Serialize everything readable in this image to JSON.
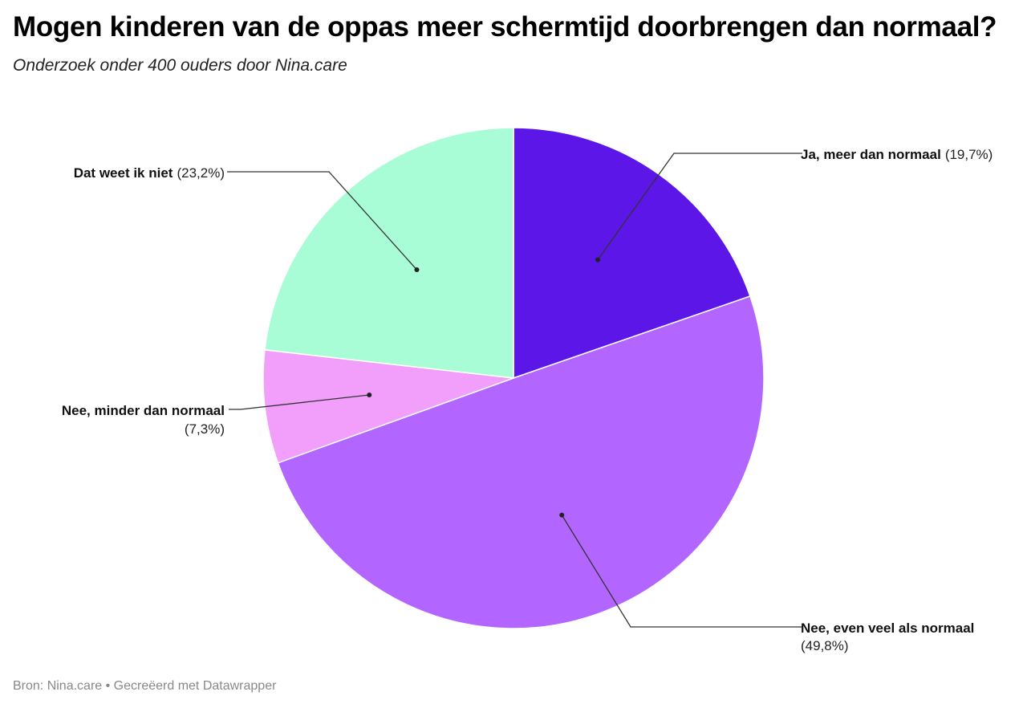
{
  "header": {
    "title": "Mogen kinderen van de oppas meer schermtijd doorbrengen dan normaal?",
    "subtitle": "Onderzoek onder 400 ouders door Nina.care"
  },
  "footer": {
    "source": "Bron: Nina.care • Gecreëerd met Datawrapper"
  },
  "chart_data": {
    "type": "pie",
    "title": "Mogen kinderen van de oppas meer schermtijd doorbrengen dan normaal?",
    "subtitle": "Onderzoek onder 400 ouders door Nina.care",
    "slices": [
      {
        "label": "Ja, meer dan normaal",
        "value": 19.7,
        "value_label": "(19,7%)",
        "color": "#5c16e8"
      },
      {
        "label": "Nee, even veel als normaal",
        "value": 49.8,
        "value_label": "(49,8%)",
        "color": "#b266ff"
      },
      {
        "label": "Nee, minder dan normaal",
        "value": 7.3,
        "value_label": "(7,3%)",
        "color": "#f29ffb"
      },
      {
        "label": "Dat weet ik niet",
        "value": 23.2,
        "value_label": "(23,2%)",
        "color": "#a8fcd6"
      }
    ]
  }
}
